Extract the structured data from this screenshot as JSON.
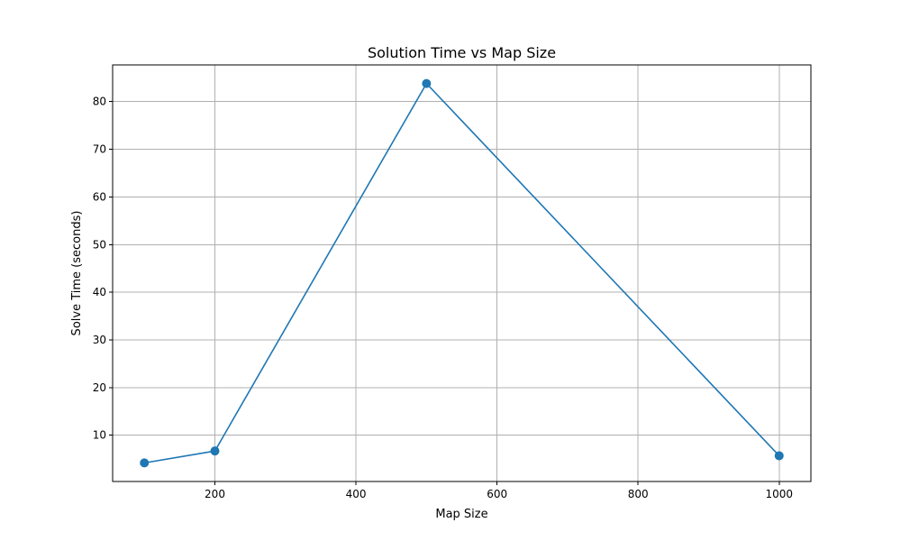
{
  "chart_data": {
    "type": "line",
    "title": "Solution Time vs Map Size",
    "xlabel": "Map Size",
    "ylabel": "Solve Time (seconds)",
    "xlim": [
      55,
      1045
    ],
    "ylim": [
      0.3,
      87.7
    ],
    "xticks": [
      200,
      400,
      600,
      800,
      1000
    ],
    "yticks": [
      10,
      20,
      30,
      40,
      50,
      60,
      70,
      80
    ],
    "grid": true,
    "series": [
      {
        "x": [
          100,
          200,
          500,
          1000
        ],
        "values": [
          4.2,
          6.7,
          83.8,
          5.7
        ],
        "color": "#1f77b4",
        "marker": "circle"
      }
    ]
  }
}
